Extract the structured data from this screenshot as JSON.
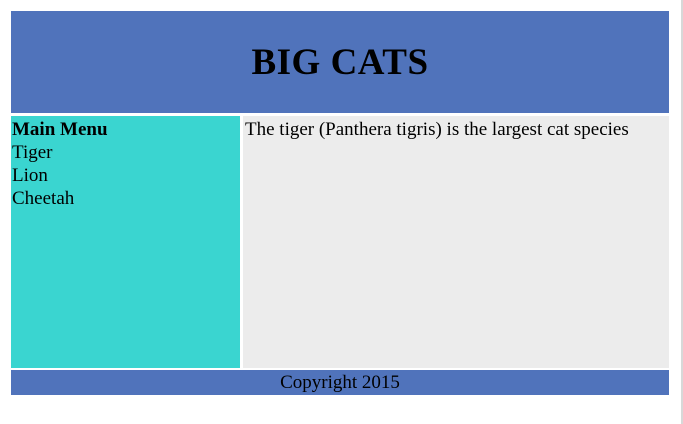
{
  "header": {
    "title": "BIG CATS"
  },
  "sidebar": {
    "menu_title": "Main Menu",
    "items": [
      {
        "label": "Tiger"
      },
      {
        "label": "Lion"
      },
      {
        "label": "Cheetah"
      }
    ]
  },
  "content": {
    "text": "The tiger (Panthera tigris) is the largest cat species"
  },
  "footer": {
    "text": "Copyright 2015"
  },
  "colors": {
    "header_bg": "#5073bb",
    "sidebar_bg": "#3ad5d0",
    "content_bg": "#ececec",
    "footer_bg": "#5073bb"
  }
}
